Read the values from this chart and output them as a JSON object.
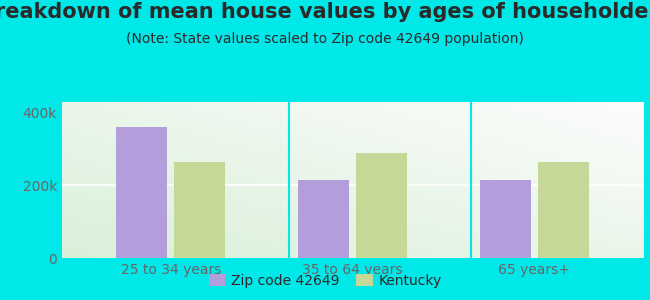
{
  "title": "Breakdown of mean house values by ages of householders",
  "subtitle": "(Note: State values scaled to Zip code 42649 population)",
  "categories": [
    "25 to 34 years",
    "35 to 64 years",
    "65 years+"
  ],
  "zip_values": [
    360000,
    215000,
    215000
  ],
  "state_values": [
    265000,
    290000,
    265000
  ],
  "zip_color": "#b39ddb",
  "state_color": "#c5d898",
  "background_color": "#00e8e8",
  "ylim": [
    0,
    430000
  ],
  "yticks": [
    0,
    200000,
    400000
  ],
  "ytick_labels": [
    "0",
    "200k",
    "400k"
  ],
  "legend_zip_label": "Zip code 42649",
  "legend_state_label": "Kentucky",
  "bar_width": 0.28,
  "title_fontsize": 15,
  "subtitle_fontsize": 10,
  "tick_fontsize": 10,
  "legend_fontsize": 10,
  "text_color": "#2a2a2a",
  "tick_color": "#666666"
}
